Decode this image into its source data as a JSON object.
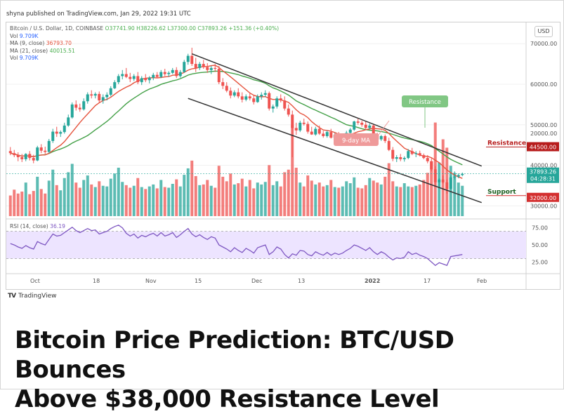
{
  "publisher_line": "shyna published on TradingView.com, Jan 29, 2022 19:31 UTC",
  "brand": "TradingView",
  "currency_button": "USD",
  "headline_line1": "Bitcoin Price Prediction: BTC/USD Bounces",
  "headline_line2": "Above $38,000 Resistance Level",
  "legend": {
    "symbol_line": "Bitcoin / U.S. Dollar, 1D, COINBASE",
    "ohlc": "O37741.90 H38226.62 L37300.00 C37893.26 +151.36 (+0.40%)",
    "vol_label": "Vol",
    "vol_value": "9.709K",
    "ma9_label": "MA (9, close)",
    "ma9_value": "36793.70",
    "ma21_label": "MA (21, close)",
    "ma21_value": "40015.51",
    "vol2_label": "Vol",
    "vol2_value": "9.709K",
    "rsi_label": "RSI (14, close)",
    "rsi_value": "36.19"
  },
  "annotations": {
    "resistance_callout": "Resistance",
    "ma_callout": "9-day MA",
    "resistance_level_label": "Resistance",
    "resistance_level_value": "44500.00",
    "support_level_label": "Support",
    "support_level_value": "32000.00",
    "price_tag": "37893.26",
    "countdown_tag": "04:28:31"
  },
  "colors": {
    "up": "#26a69a",
    "down": "#ef5350",
    "ma9": "#e5533d",
    "ma21": "#43a047",
    "rsi": "#7e57c2",
    "rsi_band": "#ede4ff",
    "channel": "#333333",
    "resistance_tag": "#b71c1c",
    "support_tag": "#d32f2f",
    "price_tag": "#26a69a",
    "callout_resistance": "#81c784",
    "callout_ma": "#ef9a9a"
  },
  "chart_data": {
    "type": "candlestick",
    "interval": "1D",
    "price_axis": {
      "ticks": [
        30000,
        40000,
        50000,
        60000,
        70000
      ],
      "tick_labels": [
        "30000.00",
        "40000.00",
        "50000.00",
        "60000.00",
        "70000.00"
      ],
      "range": [
        28500,
        73500
      ]
    },
    "volume_axis": {
      "tick": 20000,
      "tick_label": "20000.00"
    },
    "rsi_axis": {
      "ticks": [
        25,
        50,
        75
      ],
      "tick_labels": [
        "25.00",
        "50.00",
        "75.00"
      ],
      "band": [
        30,
        70
      ]
    },
    "time_axis_labels": [
      "Oct",
      "18",
      "Nov",
      "15",
      "Dec",
      "13",
      "2022",
      "17",
      "Feb"
    ],
    "candles": [
      {
        "o": 43500,
        "h": 44500,
        "l": 42500,
        "c": 43000
      },
      {
        "o": 43000,
        "h": 43800,
        "l": 42000,
        "c": 42500
      },
      {
        "o": 42500,
        "h": 43200,
        "l": 41000,
        "c": 42000
      },
      {
        "o": 42000,
        "h": 42800,
        "l": 40800,
        "c": 41500
      },
      {
        "o": 41500,
        "h": 43000,
        "l": 41000,
        "c": 42800
      },
      {
        "o": 42800,
        "h": 43500,
        "l": 41200,
        "c": 41800
      },
      {
        "o": 41800,
        "h": 42600,
        "l": 40500,
        "c": 41200
      },
      {
        "o": 41200,
        "h": 44800,
        "l": 41000,
        "c": 44400
      },
      {
        "o": 44400,
        "h": 45200,
        "l": 43000,
        "c": 43600
      },
      {
        "o": 43600,
        "h": 44600,
        "l": 42800,
        "c": 43300
      },
      {
        "o": 43300,
        "h": 46500,
        "l": 43000,
        "c": 46000
      },
      {
        "o": 46000,
        "h": 49000,
        "l": 45500,
        "c": 48300
      },
      {
        "o": 48300,
        "h": 49500,
        "l": 47000,
        "c": 47800
      },
      {
        "o": 47800,
        "h": 48600,
        "l": 47000,
        "c": 48200
      },
      {
        "o": 48200,
        "h": 50500,
        "l": 47800,
        "c": 49800
      },
      {
        "o": 49800,
        "h": 52500,
        "l": 49500,
        "c": 51800
      },
      {
        "o": 51800,
        "h": 55500,
        "l": 51500,
        "c": 55000
      },
      {
        "o": 55000,
        "h": 56000,
        "l": 53500,
        "c": 54200
      },
      {
        "o": 54200,
        "h": 55200,
        "l": 53200,
        "c": 53800
      },
      {
        "o": 53800,
        "h": 56500,
        "l": 53500,
        "c": 55800
      },
      {
        "o": 55800,
        "h": 58000,
        "l": 55200,
        "c": 57500
      },
      {
        "o": 57500,
        "h": 58500,
        "l": 56500,
        "c": 57200
      },
      {
        "o": 57200,
        "h": 58000,
        "l": 56500,
        "c": 57600
      },
      {
        "o": 57600,
        "h": 58200,
        "l": 55500,
        "c": 56000
      },
      {
        "o": 56000,
        "h": 57500,
        "l": 55200,
        "c": 56800
      },
      {
        "o": 56800,
        "h": 58000,
        "l": 56000,
        "c": 57400
      },
      {
        "o": 57400,
        "h": 59500,
        "l": 57000,
        "c": 59000
      },
      {
        "o": 59000,
        "h": 61000,
        "l": 58800,
        "c": 60500
      },
      {
        "o": 60500,
        "h": 62500,
        "l": 60000,
        "c": 62000
      },
      {
        "o": 62000,
        "h": 63500,
        "l": 61200,
        "c": 62500
      },
      {
        "o": 62500,
        "h": 64000,
        "l": 61500,
        "c": 61800
      },
      {
        "o": 61800,
        "h": 62800,
        "l": 60500,
        "c": 61300
      },
      {
        "o": 61300,
        "h": 62500,
        "l": 60800,
        "c": 62000
      },
      {
        "o": 62000,
        "h": 63000,
        "l": 60000,
        "c": 60500
      },
      {
        "o": 60500,
        "h": 62000,
        "l": 59800,
        "c": 61500
      },
      {
        "o": 61500,
        "h": 62500,
        "l": 60500,
        "c": 61000
      },
      {
        "o": 61000,
        "h": 62000,
        "l": 60200,
        "c": 61600
      },
      {
        "o": 61600,
        "h": 62800,
        "l": 61000,
        "c": 62300
      },
      {
        "o": 62300,
        "h": 63000,
        "l": 61500,
        "c": 61800
      },
      {
        "o": 61800,
        "h": 63500,
        "l": 61500,
        "c": 63000
      },
      {
        "o": 63000,
        "h": 63800,
        "l": 62000,
        "c": 62500
      },
      {
        "o": 62500,
        "h": 63200,
        "l": 61800,
        "c": 62800
      },
      {
        "o": 62800,
        "h": 64000,
        "l": 62500,
        "c": 63500
      },
      {
        "o": 63500,
        "h": 64200,
        "l": 61500,
        "c": 62000
      },
      {
        "o": 62000,
        "h": 63500,
        "l": 61600,
        "c": 63000
      },
      {
        "o": 63000,
        "h": 66000,
        "l": 62800,
        "c": 65500
      },
      {
        "o": 65500,
        "h": 67500,
        "l": 64800,
        "c": 67000
      },
      {
        "o": 67000,
        "h": 69000,
        "l": 64500,
        "c": 65000
      },
      {
        "o": 65000,
        "h": 66500,
        "l": 63000,
        "c": 64000
      },
      {
        "o": 64000,
        "h": 65500,
        "l": 63500,
        "c": 65000
      },
      {
        "o": 65000,
        "h": 66000,
        "l": 63800,
        "c": 64200
      },
      {
        "o": 64200,
        "h": 65200,
        "l": 62800,
        "c": 63500
      },
      {
        "o": 63500,
        "h": 64500,
        "l": 62500,
        "c": 64000
      },
      {
        "o": 64000,
        "h": 65000,
        "l": 63000,
        "c": 63800
      },
      {
        "o": 63800,
        "h": 64500,
        "l": 60000,
        "c": 60500
      },
      {
        "o": 60500,
        "h": 61500,
        "l": 58800,
        "c": 59600
      },
      {
        "o": 59600,
        "h": 60500,
        "l": 58000,
        "c": 58400
      },
      {
        "o": 58400,
        "h": 59200,
        "l": 56500,
        "c": 57200
      },
      {
        "o": 57200,
        "h": 58500,
        "l": 56800,
        "c": 58000
      },
      {
        "o": 58000,
        "h": 59000,
        "l": 56500,
        "c": 57000
      },
      {
        "o": 57000,
        "h": 58000,
        "l": 55500,
        "c": 56200
      },
      {
        "o": 56200,
        "h": 57500,
        "l": 55800,
        "c": 57000
      },
      {
        "o": 57000,
        "h": 58000,
        "l": 56000,
        "c": 56500
      },
      {
        "o": 56500,
        "h": 57200,
        "l": 55000,
        "c": 55600
      },
      {
        "o": 55600,
        "h": 57500,
        "l": 55400,
        "c": 57000
      },
      {
        "o": 57000,
        "h": 58000,
        "l": 56200,
        "c": 57400
      },
      {
        "o": 57400,
        "h": 58500,
        "l": 56800,
        "c": 57800
      },
      {
        "o": 57800,
        "h": 58200,
        "l": 53500,
        "c": 54000
      },
      {
        "o": 54000,
        "h": 55000,
        "l": 53000,
        "c": 54500
      },
      {
        "o": 54500,
        "h": 57000,
        "l": 54000,
        "c": 56500
      },
      {
        "o": 56500,
        "h": 57500,
        "l": 55500,
        "c": 56000
      },
      {
        "o": 56000,
        "h": 57000,
        "l": 53500,
        "c": 54000
      },
      {
        "o": 54000,
        "h": 55000,
        "l": 52000,
        "c": 52500
      },
      {
        "o": 52500,
        "h": 53500,
        "l": 42000,
        "c": 49200
      },
      {
        "o": 49200,
        "h": 50500,
        "l": 47500,
        "c": 48600
      },
      {
        "o": 48600,
        "h": 51000,
        "l": 48200,
        "c": 50500
      },
      {
        "o": 50500,
        "h": 51500,
        "l": 49800,
        "c": 50200
      },
      {
        "o": 50200,
        "h": 50800,
        "l": 47800,
        "c": 48300
      },
      {
        "o": 48300,
        "h": 49500,
        "l": 47500,
        "c": 47600
      },
      {
        "o": 47600,
        "h": 49500,
        "l": 47300,
        "c": 49000
      },
      {
        "o": 49000,
        "h": 49800,
        "l": 47500,
        "c": 47800
      },
      {
        "o": 47800,
        "h": 48500,
        "l": 46800,
        "c": 47200
      },
      {
        "o": 47200,
        "h": 48600,
        "l": 46800,
        "c": 48200
      },
      {
        "o": 48200,
        "h": 49000,
        "l": 46600,
        "c": 46800
      },
      {
        "o": 46800,
        "h": 48000,
        "l": 46500,
        "c": 47500
      },
      {
        "o": 47500,
        "h": 48200,
        "l": 46400,
        "c": 46700
      },
      {
        "o": 46700,
        "h": 47500,
        "l": 46300,
        "c": 47200
      },
      {
        "o": 47200,
        "h": 48500,
        "l": 46700,
        "c": 48000
      },
      {
        "o": 48000,
        "h": 49200,
        "l": 47500,
        "c": 48800
      },
      {
        "o": 48800,
        "h": 51000,
        "l": 48500,
        "c": 50800
      },
      {
        "o": 50800,
        "h": 51500,
        "l": 50000,
        "c": 50500
      },
      {
        "o": 50500,
        "h": 51000,
        "l": 49500,
        "c": 50000
      },
      {
        "o": 50000,
        "h": 50800,
        "l": 48800,
        "c": 49200
      },
      {
        "o": 49200,
        "h": 50300,
        "l": 48800,
        "c": 49800
      },
      {
        "o": 49800,
        "h": 50200,
        "l": 47200,
        "c": 47600
      },
      {
        "o": 47600,
        "h": 48000,
        "l": 45800,
        "c": 46400
      },
      {
        "o": 46400,
        "h": 47500,
        "l": 46000,
        "c": 47200
      },
      {
        "o": 47200,
        "h": 47600,
        "l": 45500,
        "c": 46000
      },
      {
        "o": 46000,
        "h": 46800,
        "l": 43500,
        "c": 43800
      },
      {
        "o": 43800,
        "h": 44500,
        "l": 41000,
        "c": 41600
      },
      {
        "o": 41600,
        "h": 42500,
        "l": 40800,
        "c": 42000
      },
      {
        "o": 42000,
        "h": 42800,
        "l": 41000,
        "c": 41500
      },
      {
        "o": 41500,
        "h": 42200,
        "l": 40900,
        "c": 41800
      },
      {
        "o": 41800,
        "h": 44000,
        "l": 41500,
        "c": 43500
      },
      {
        "o": 43500,
        "h": 44300,
        "l": 42500,
        "c": 42800
      },
      {
        "o": 42800,
        "h": 43500,
        "l": 42000,
        "c": 43000
      },
      {
        "o": 43000,
        "h": 43600,
        "l": 42200,
        "c": 42500
      },
      {
        "o": 42500,
        "h": 42900,
        "l": 41500,
        "c": 41800
      },
      {
        "o": 41800,
        "h": 42500,
        "l": 40500,
        "c": 41000
      },
      {
        "o": 41000,
        "h": 41800,
        "l": 38500,
        "c": 39000
      },
      {
        "o": 39000,
        "h": 39800,
        "l": 35000,
        "c": 35800
      },
      {
        "o": 35800,
        "h": 36800,
        "l": 34500,
        "c": 36500
      },
      {
        "o": 36500,
        "h": 37500,
        "l": 35500,
        "c": 35800
      },
      {
        "o": 35800,
        "h": 36500,
        "l": 33000,
        "c": 34200
      },
      {
        "o": 34200,
        "h": 37500,
        "l": 34000,
        "c": 37000
      },
      {
        "o": 37000,
        "h": 38500,
        "l": 36500,
        "c": 37200
      },
      {
        "o": 37200,
        "h": 38000,
        "l": 36800,
        "c": 37600
      },
      {
        "o": 37600,
        "h": 38200,
        "l": 37300,
        "c": 37900
      }
    ],
    "volume": [
      3.2,
      4.1,
      3.5,
      3.8,
      5.2,
      3.4,
      3.9,
      6.1,
      4.2,
      3.5,
      5.5,
      7.2,
      4.8,
      4.0,
      5.9,
      6.8,
      8.1,
      5.2,
      4.4,
      5.6,
      6.3,
      4.9,
      4.5,
      5.4,
      4.7,
      4.6,
      5.8,
      6.6,
      7.5,
      5.3,
      4.8,
      4.4,
      4.7,
      5.9,
      4.5,
      4.2,
      4.6,
      4.9,
      4.3,
      5.6,
      4.5,
      4.4,
      5.0,
      5.7,
      4.6,
      6.4,
      7.4,
      8.6,
      6.2,
      4.8,
      4.9,
      5.6,
      4.7,
      4.4,
      7.8,
      6.1,
      5.4,
      6.6,
      4.9,
      5.1,
      5.8,
      4.6,
      5.6,
      4.3,
      5.2,
      4.9,
      5.3,
      7.9,
      4.8,
      5.4,
      4.6,
      6.8,
      7.2,
      14.1,
      7.5,
      5.2,
      4.6,
      6.3,
      5.5,
      4.9,
      5.2,
      4.6,
      4.8,
      5.6,
      4.5,
      4.4,
      4.6,
      5.4,
      5.1,
      6.0,
      4.4,
      4.3,
      4.8,
      5.9,
      5.5,
      5.2,
      4.9,
      6.1,
      8.2,
      5.4,
      4.6,
      4.5,
      5.1,
      4.6,
      4.5,
      4.7,
      4.9,
      5.6,
      6.7,
      8.5,
      14.5,
      8.3,
      11.9,
      10.6,
      7.8,
      6.7,
      5.2,
      4.7
    ],
    "rsi": [
      52,
      50,
      47,
      45,
      49,
      46,
      44,
      55,
      52,
      50,
      58,
      66,
      63,
      64,
      68,
      72,
      76,
      71,
      68,
      71,
      74,
      71,
      72,
      66,
      68,
      70,
      74,
      77,
      79,
      75,
      67,
      63,
      66,
      60,
      64,
      62,
      65,
      67,
      63,
      68,
      63,
      65,
      68,
      61,
      65,
      70,
      74,
      66,
      62,
      65,
      61,
      58,
      62,
      60,
      50,
      47,
      44,
      40,
      46,
      42,
      39,
      45,
      42,
      38,
      46,
      48,
      50,
      36,
      40,
      47,
      44,
      36,
      31,
      37,
      35,
      42,
      41,
      36,
      34,
      40,
      37,
      35,
      39,
      35,
      38,
      36,
      38,
      42,
      45,
      50,
      48,
      45,
      42,
      46,
      40,
      36,
      40,
      37,
      32,
      28,
      31,
      30,
      32,
      40,
      36,
      38,
      35,
      33,
      30,
      25,
      20,
      24,
      22,
      20,
      33,
      34,
      35,
      36
    ],
    "annotations_lines": {
      "upper_channel": [
        [
          47,
          67500
        ],
        [
          122,
          39800
        ]
      ],
      "lower_channel": [
        [
          46,
          56500
        ],
        [
          122,
          30800
        ]
      ],
      "resistance_level": 44500,
      "support_level": 32000,
      "last_price": 37893.26
    }
  }
}
